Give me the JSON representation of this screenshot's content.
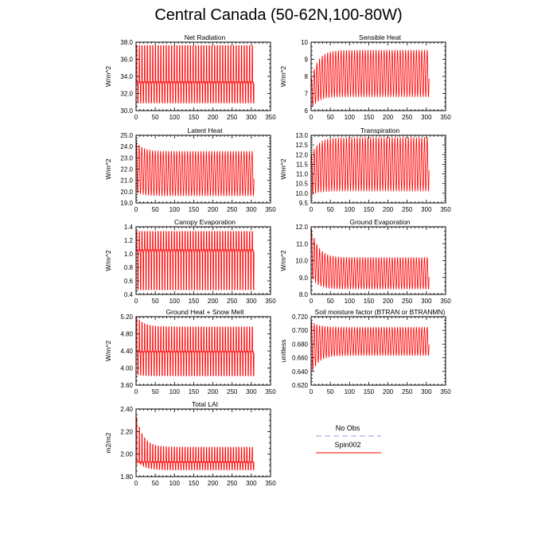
{
  "title": "Central Canada (50-62N,100-80W)",
  "legend": {
    "entries": [
      {
        "label": "No Obs",
        "color": "#9999dd",
        "style": "dashed"
      },
      {
        "label": "Spin002",
        "color": "#ff0000",
        "style": "solid"
      }
    ]
  },
  "chart_data": [
    {
      "type": "line",
      "title": "Net Radiation",
      "ylabel": "W/m^2",
      "xlim": [
        0,
        350
      ],
      "ylim": [
        30.0,
        38.0
      ],
      "xticks": [
        0,
        50,
        100,
        150,
        200,
        250,
        300,
        350
      ],
      "yticks": [
        30.0,
        32.0,
        34.0,
        36.0,
        38.0
      ],
      "ytick_decimals": 1,
      "series": [
        {
          "name": "Spin002",
          "color": "#ff0000",
          "x_range": [
            1,
            307
          ],
          "cycle_min": 30.9,
          "cycle_max": 37.6,
          "cycle_mid": 33.3
        }
      ]
    },
    {
      "type": "line",
      "title": "Sensible Heat",
      "ylabel": "W/m^2",
      "xlim": [
        0,
        350
      ],
      "ylim": [
        6,
        10
      ],
      "xticks": [
        0,
        50,
        100,
        150,
        200,
        250,
        300,
        350
      ],
      "yticks": [
        6,
        7,
        8,
        9,
        10
      ],
      "ytick_decimals": 0,
      "series": [
        {
          "name": "Spin002",
          "color": "#ff0000",
          "x_range": [
            1,
            307
          ],
          "start_min": 6.1,
          "start_max": 7.9,
          "cycle_min": 6.8,
          "cycle_max": 9.55
        }
      ]
    },
    {
      "type": "line",
      "title": "Latent Heat",
      "ylabel": "W/m^2",
      "xlim": [
        0,
        350
      ],
      "ylim": [
        19.0,
        25.0
      ],
      "xticks": [
        0,
        50,
        100,
        150,
        200,
        250,
        300,
        350
      ],
      "yticks": [
        19.0,
        20.0,
        21.0,
        22.0,
        23.0,
        24.0,
        25.0
      ],
      "ytick_decimals": 1,
      "series": [
        {
          "name": "Spin002",
          "color": "#ff0000",
          "x_range": [
            1,
            307
          ],
          "start_min": 19.9,
          "start_max": 24.4,
          "cycle_min": 19.6,
          "cycle_max": 23.6
        }
      ]
    },
    {
      "type": "line",
      "title": "Transpiration",
      "ylabel": "W/m^2",
      "xlim": [
        0,
        350
      ],
      "ylim": [
        9.5,
        13.0
      ],
      "xticks": [
        0,
        50,
        100,
        150,
        200,
        250,
        300,
        350
      ],
      "yticks": [
        9.5,
        10.0,
        10.5,
        11.0,
        11.5,
        12.0,
        12.5,
        13.0
      ],
      "ytick_decimals": 1,
      "series": [
        {
          "name": "Spin002",
          "color": "#ff0000",
          "x_range": [
            1,
            307
          ],
          "start_min": 9.9,
          "start_max": 12.0,
          "cycle_min": 10.1,
          "cycle_max": 12.9
        }
      ]
    },
    {
      "type": "line",
      "title": "Canopy Evaporation",
      "ylabel": "W/m^2",
      "xlim": [
        0,
        350
      ],
      "ylim": [
        0.4,
        1.4
      ],
      "xticks": [
        0,
        50,
        100,
        150,
        200,
        250,
        300,
        350
      ],
      "yticks": [
        0.4,
        0.6,
        0.8,
        1.0,
        1.2,
        1.4
      ],
      "ytick_decimals": 1,
      "series": [
        {
          "name": "Spin002",
          "color": "#ff0000",
          "x_range": [
            1,
            307
          ],
          "cycle_min": 0.47,
          "cycle_max": 1.33,
          "cycle_mid": 1.05
        }
      ]
    },
    {
      "type": "line",
      "title": "Ground Evaporation",
      "ylabel": "W/m^2",
      "xlim": [
        0,
        350
      ],
      "ylim": [
        8.0,
        12.0
      ],
      "xticks": [
        0,
        50,
        100,
        150,
        200,
        250,
        300,
        350
      ],
      "yticks": [
        8.0,
        9.0,
        10.0,
        11.0,
        12.0
      ],
      "ytick_decimals": 1,
      "series": [
        {
          "name": "Spin002",
          "color": "#ff0000",
          "x_range": [
            1,
            307
          ],
          "start_min": 9.0,
          "start_max": 11.9,
          "cycle_min": 8.3,
          "cycle_max": 10.2
        }
      ]
    },
    {
      "type": "line",
      "title": "Ground Heat + Snow Melt",
      "ylabel": "W/m^2",
      "xlim": [
        0,
        350
      ],
      "ylim": [
        3.6,
        5.2
      ],
      "xticks": [
        0,
        50,
        100,
        150,
        200,
        250,
        300,
        350
      ],
      "yticks": [
        3.6,
        4.0,
        4.4,
        4.8,
        5.2
      ],
      "ytick_decimals": 2,
      "series": [
        {
          "name": "Spin002",
          "color": "#ff0000",
          "x_range": [
            1,
            307
          ],
          "start_min": 3.85,
          "start_max": 5.2,
          "cycle_min": 3.82,
          "cycle_max": 4.96,
          "cycle_mid": 4.38
        }
      ]
    },
    {
      "type": "line",
      "title": "Soil moisture factor (BTRAN or BTRANMN)",
      "ylabel": "unitless",
      "xlim": [
        0,
        350
      ],
      "ylim": [
        0.62,
        0.72
      ],
      "xticks": [
        0,
        50,
        100,
        150,
        200,
        250,
        300,
        350
      ],
      "yticks": [
        0.62,
        0.64,
        0.66,
        0.68,
        0.7,
        0.72
      ],
      "ytick_decimals": 3,
      "series": [
        {
          "name": "Spin002",
          "color": "#ff0000",
          "x_range": [
            1,
            307
          ],
          "start_min": 0.635,
          "start_max": 0.713,
          "cycle_min": 0.663,
          "cycle_max": 0.705
        }
      ]
    },
    {
      "type": "line",
      "title": "Total LAI",
      "ylabel": "m2/m2",
      "xlim": [
        0,
        350
      ],
      "ylim": [
        1.8,
        2.4
      ],
      "xticks": [
        0,
        50,
        100,
        150,
        200,
        250,
        300,
        350
      ],
      "yticks": [
        1.8,
        2.0,
        2.2,
        2.4
      ],
      "ytick_decimals": 2,
      "series": [
        {
          "name": "Spin002",
          "color": "#ff0000",
          "x_range": [
            1,
            307
          ],
          "start_min": 1.95,
          "start_max": 2.33,
          "cycle_min": 1.86,
          "cycle_max": 2.06,
          "cycle_mid": 1.93
        }
      ]
    }
  ]
}
